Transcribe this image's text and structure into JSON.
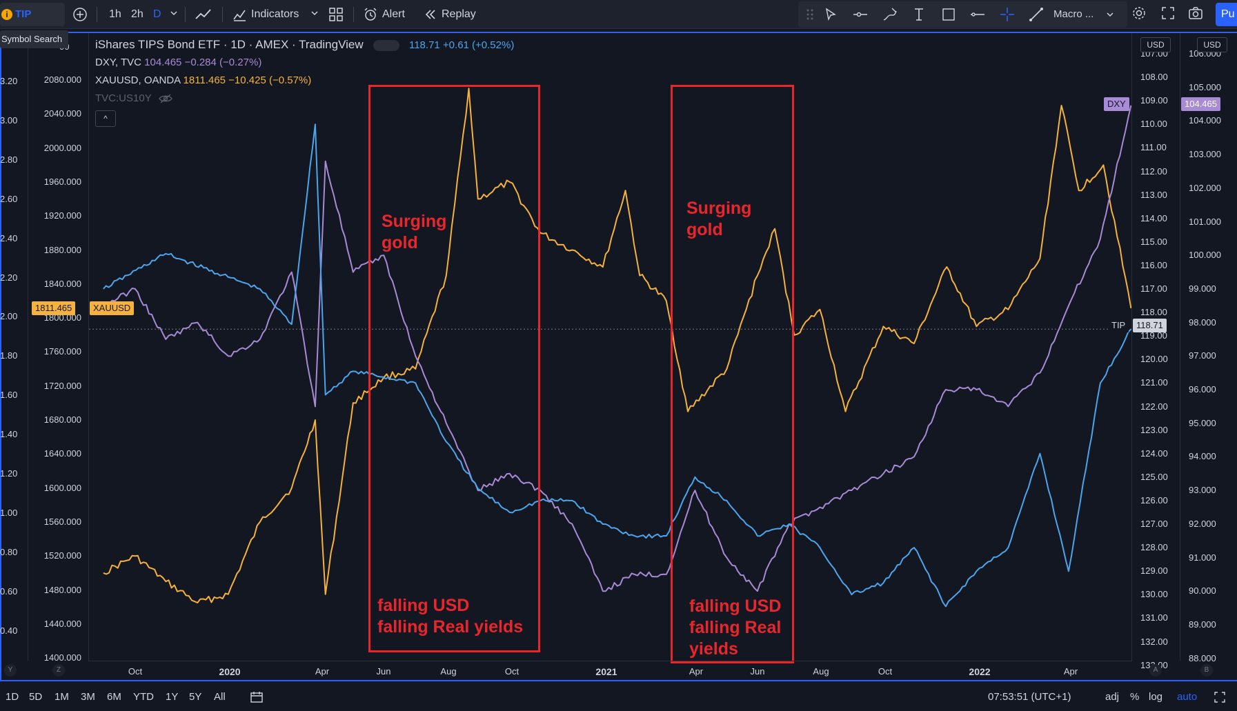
{
  "toolbar": {
    "symbol": "TIP",
    "symbol_badge": "i",
    "tooltip": "Symbol Search",
    "intervals": [
      "1h",
      "2h",
      "D"
    ],
    "indicators_label": "Indicators",
    "alert_label": "Alert",
    "replay_label": "Replay",
    "layout_label": "Macro ...",
    "publish_label": "Pu"
  },
  "legend": {
    "main_title": "iShares TIPS Bond ETF · 1D · AMEX · TradingView",
    "main_price": "118.71",
    "main_change": "+0.61 (+0.52%)",
    "dxy_title": "DXY, TVC",
    "dxy_price": "104.465",
    "dxy_change": "−0.284 (−0.27%)",
    "gold_title": "XAUUSD, OANDA",
    "gold_price": "1811.465",
    "gold_change": "−10.425 (−0.57%)",
    "hidden_series": "TVC:US10Y",
    "collapse_icon": "^"
  },
  "scales": {
    "far_left": [
      "3.20",
      "3.00",
      "2.80",
      "2.60",
      "2.40",
      "2.20",
      "2.00",
      "1.80",
      "1.60",
      "1.40",
      "1.20",
      "1.00",
      "0.80",
      "0.60",
      "0.40"
    ],
    "far_left_top": "00",
    "left": [
      "2080.000",
      "2040.000",
      "2000.000",
      "1960.000",
      "1920.000",
      "1880.000",
      "1840.000",
      "1800.000",
      "1760.000",
      "1720.000",
      "1680.000",
      "1640.000",
      "1600.000",
      "1560.000",
      "1520.000",
      "1480.000",
      "1440.000",
      "1400.000"
    ],
    "right1": [
      "107.00",
      "108.00",
      "109.00",
      "110.00",
      "111.00",
      "112.00",
      "113.00",
      "114.00",
      "115.00",
      "116.00",
      "117.00",
      "118.00",
      "119.00",
      "120.00",
      "121.00",
      "122.00",
      "123.00",
      "124.00",
      "125.00",
      "126.00",
      "127.00",
      "128.00",
      "129.00",
      "130.00",
      "131.00",
      "132.00",
      "133.00"
    ],
    "right2": [
      "106.000",
      "105.000",
      "104.000",
      "103.000",
      "102.000",
      "101.000",
      "100.000",
      "99.000",
      "98.000",
      "97.000",
      "96.000",
      "95.000",
      "94.000",
      "93.000",
      "92.000",
      "91.000",
      "90.000",
      "89.000",
      "88.000"
    ],
    "unit_left": "USD",
    "unit_right": "USD",
    "corner_labels": [
      "Y",
      "Z",
      "A",
      "B"
    ]
  },
  "badges": {
    "gold_value": "1811.465",
    "gold_name": "XAUUSD",
    "dxy_name": "DXY",
    "dxy_value": "104.465",
    "tip_name": "TIP",
    "tip_value": "118.71"
  },
  "time_axis": {
    "labels": [
      {
        "text": "Oct",
        "year": false
      },
      {
        "text": "2020",
        "year": true
      },
      {
        "text": "Apr",
        "year": false
      },
      {
        "text": "Jun",
        "year": false
      },
      {
        "text": "Aug",
        "year": false
      },
      {
        "text": "Oct",
        "year": false
      },
      {
        "text": "2021",
        "year": true
      },
      {
        "text": "Apr",
        "year": false
      },
      {
        "text": "Jun",
        "year": false
      },
      {
        "text": "Aug",
        "year": false
      },
      {
        "text": "Oct",
        "year": false
      },
      {
        "text": "2022",
        "year": true
      },
      {
        "text": "Apr",
        "year": false
      }
    ]
  },
  "annotations": {
    "box1_top": "Surging\ngold",
    "box1_bottom": "falling USD\nfalling Real yields",
    "box2_top": "Surging\ngold",
    "box2_bottom": "falling USD\nfalling Real\nyields"
  },
  "bottom_bar": {
    "ranges": [
      "1D",
      "5D",
      "1M",
      "3M",
      "6M",
      "YTD",
      "1Y",
      "5Y",
      "All"
    ],
    "clock": "07:53:51 (UTC+1)",
    "adj": "adj",
    "percent": "%",
    "log": "log",
    "auto": "auto"
  },
  "colors": {
    "gold": "#f7b23b",
    "tip": "#4ca6ee",
    "dxy": "#a98ad6",
    "annotation": "#e8262b",
    "accent": "#2962ff"
  },
  "chart_data": {
    "type": "line",
    "x_range": [
      "2019-08",
      "2022-05"
    ],
    "series": [
      {
        "name": "XAUUSD",
        "axis": "left",
        "ylim": [
          1400,
          2100
        ],
        "points": [
          [
            "2019-08",
            1500
          ],
          [
            "2019-09",
            1520
          ],
          [
            "2019-10",
            1490
          ],
          [
            "2019-11",
            1465
          ],
          [
            "2019-12",
            1475
          ],
          [
            "2020-01",
            1560
          ],
          [
            "2020-02",
            1600
          ],
          [
            "2020-03-09",
            1680
          ],
          [
            "2020-03-19",
            1475
          ],
          [
            "2020-04",
            1700
          ],
          [
            "2020-05",
            1730
          ],
          [
            "2020-06",
            1740
          ],
          [
            "2020-07",
            1850
          ],
          [
            "2020-08-06",
            2070
          ],
          [
            "2020-08-15",
            1940
          ],
          [
            "2020-09",
            1960
          ],
          [
            "2020-10",
            1900
          ],
          [
            "2020-11",
            1880
          ],
          [
            "2020-12",
            1860
          ],
          [
            "2021-01-06",
            1950
          ],
          [
            "2021-01-20",
            1850
          ],
          [
            "2021-02",
            1820
          ],
          [
            "2021-03-08",
            1690
          ],
          [
            "2021-04",
            1740
          ],
          [
            "2021-05",
            1850
          ],
          [
            "2021-06-01",
            1905
          ],
          [
            "2021-06-20",
            1780
          ],
          [
            "2021-07",
            1810
          ],
          [
            "2021-08-09",
            1690
          ],
          [
            "2021-09",
            1790
          ],
          [
            "2021-10",
            1770
          ],
          [
            "2021-11-16",
            1860
          ],
          [
            "2021-12",
            1790
          ],
          [
            "2022-01",
            1810
          ],
          [
            "2022-02",
            1870
          ],
          [
            "2022-03-08",
            2050
          ],
          [
            "2022-03-25",
            1950
          ],
          [
            "2022-04-18",
            1980
          ],
          [
            "2022-05",
            1811.465
          ]
        ]
      },
      {
        "name": "TIP",
        "axis": "right1",
        "ylim": [
          107,
          133
        ],
        "inverted": true,
        "points": [
          [
            "2019-08",
            117.0
          ],
          [
            "2019-10",
            115.5
          ],
          [
            "2019-12",
            116.5
          ],
          [
            "2020-01",
            117.0
          ],
          [
            "2020-02",
            118.5
          ],
          [
            "2020-03-09",
            110.0
          ],
          [
            "2020-03-19",
            121.5
          ],
          [
            "2020-04",
            120.5
          ],
          [
            "2020-06",
            121.0
          ],
          [
            "2020-07",
            123.5
          ],
          [
            "2020-08",
            125.5
          ],
          [
            "2020-09",
            126.5
          ],
          [
            "2020-10",
            126.0
          ],
          [
            "2020-11",
            126.0
          ],
          [
            "2020-12",
            127.0
          ],
          [
            "2021-01",
            127.5
          ],
          [
            "2021-02",
            127.5
          ],
          [
            "2021-03",
            125.0
          ],
          [
            "2021-04",
            126.0
          ],
          [
            "2021-05",
            127.5
          ],
          [
            "2021-06",
            127.0
          ],
          [
            "2021-07",
            128.0
          ],
          [
            "2021-08",
            130.0
          ],
          [
            "2021-09",
            129.5
          ],
          [
            "2021-10",
            128.0
          ],
          [
            "2021-11",
            130.5
          ],
          [
            "2021-12",
            129.0
          ],
          [
            "2022-01",
            128.0
          ],
          [
            "2022-02",
            124.0
          ],
          [
            "2022-03",
            129.0
          ],
          [
            "2022-04",
            121.0
          ],
          [
            "2022-05",
            118.71
          ]
        ]
      },
      {
        "name": "DXY",
        "axis": "right2",
        "ylim": [
          88,
          106
        ],
        "points": [
          [
            "2019-08",
            98.5
          ],
          [
            "2019-09",
            99.0
          ],
          [
            "2019-10",
            97.5
          ],
          [
            "2019-11",
            98.0
          ],
          [
            "2019-12",
            97.0
          ],
          [
            "2020-01",
            97.5
          ],
          [
            "2020-02",
            99.5
          ],
          [
            "2020-03-09",
            95.5
          ],
          [
            "2020-03-19",
            102.8
          ],
          [
            "2020-04",
            99.5
          ],
          [
            "2020-05",
            100.0
          ],
          [
            "2020-06",
            97.0
          ],
          [
            "2020-07",
            95.0
          ],
          [
            "2020-08",
            93.0
          ],
          [
            "2020-09",
            93.5
          ],
          [
            "2020-10",
            93.0
          ],
          [
            "2020-11",
            92.0
          ],
          [
            "2020-12",
            90.0
          ],
          [
            "2021-01",
            90.5
          ],
          [
            "2021-02",
            90.5
          ],
          [
            "2021-03",
            93.0
          ],
          [
            "2021-04",
            91.0
          ],
          [
            "2021-05",
            90.0
          ],
          [
            "2021-06",
            92.0
          ],
          [
            "2021-07",
            92.5
          ],
          [
            "2021-08",
            93.0
          ],
          [
            "2021-09",
            93.5
          ],
          [
            "2021-10",
            94.0
          ],
          [
            "2021-11",
            96.0
          ],
          [
            "2021-12",
            96.0
          ],
          [
            "2022-01",
            95.5
          ],
          [
            "2022-02",
            96.5
          ],
          [
            "2022-03",
            98.5
          ],
          [
            "2022-04",
            100.5
          ],
          [
            "2022-05",
            104.465
          ]
        ]
      }
    ]
  }
}
